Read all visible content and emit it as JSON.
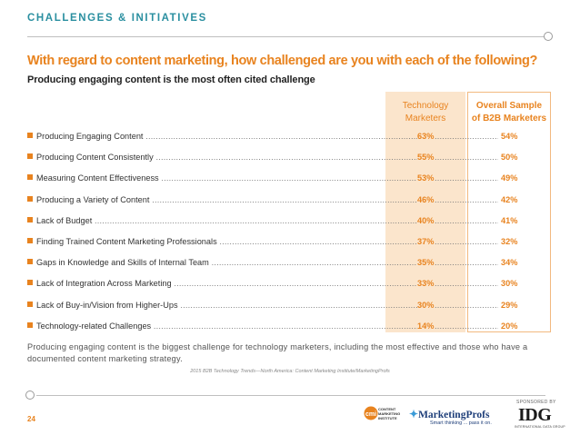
{
  "header": {
    "section_title": "CHALLENGES & INITIATIVES"
  },
  "question": "With regard to content marketing, how challenged are you with each of the following?",
  "subtitle": "Producing engaging content is the most often cited challenge",
  "columns": {
    "tech": "Technology\nMarketers",
    "overall": "Overall Sample\nof B2B Marketers"
  },
  "chart_data": {
    "type": "table",
    "title": "With regard to content marketing, how challenged are you with each of the following?",
    "series": [
      {
        "name": "Technology Marketers",
        "values": [
          "63%",
          "55%",
          "53%",
          "46%",
          "40%",
          "37%",
          "35%",
          "33%",
          "30%",
          "14%"
        ]
      },
      {
        "name": "Overall Sample of B2B Marketers",
        "values": [
          "54%",
          "50%",
          "49%",
          "42%",
          "41%",
          "32%",
          "34%",
          "30%",
          "29%",
          "20%"
        ]
      }
    ],
    "categories": [
      "Producing Engaging Content",
      "Producing Content Consistently",
      "Measuring Content Effectiveness",
      "Producing a Variety of Content",
      "Lack of Budget",
      "Finding Trained Content Marketing Professionals",
      "Gaps in Knowledge and Skills of Internal Team",
      "Lack of Integration Across Marketing",
      "Lack of Buy-in/Vision from Higher-Ups",
      "Technology-related Challenges"
    ]
  },
  "footnote": "Producing engaging content is the biggest challenge for technology marketers, including the most effective and those who have a documented content marketing strategy.",
  "source": "2015 B2B Technology Trends—North America: Content Marketing Institute/MarketingProfs",
  "page_number": "24",
  "sponsored_by": "SPONSORED BY",
  "logos": {
    "cmi_mark": "cmi",
    "cmi_text": "CONTENT\nMARKETING\nINSTITUTE",
    "marketingprofs": "MarketingProfs",
    "marketingprofs_tagline": "Smart thinking ... pass it on.",
    "idg": "IDG",
    "idg_tagline": "INTERNATIONAL DATA GROUP"
  },
  "colors": {
    "accent": "#e8831f",
    "teal": "#2a8fa0",
    "tech_bg": "#fbe5cc"
  }
}
